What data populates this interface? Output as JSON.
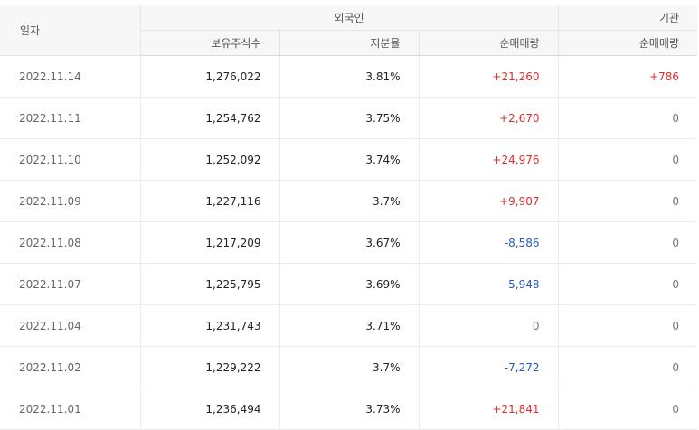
{
  "header": {
    "date_label": "일자",
    "foreign_label": "외국인",
    "institution_label": "기관",
    "columns": [
      "보유주식수",
      "지분율",
      "순매매량",
      "순매매량"
    ]
  },
  "colors": {
    "positive": "#e02c2c",
    "negative": "#2a57c6",
    "neutral": "#777777"
  },
  "rows": [
    {
      "date": "2022.11.14",
      "shares": "1,276,022",
      "ratio": "3.81%",
      "foreign_net": "+21,260",
      "inst_net": "+786"
    },
    {
      "date": "2022.11.11",
      "shares": "1,254,762",
      "ratio": "3.75%",
      "foreign_net": "+2,670",
      "inst_net": "0"
    },
    {
      "date": "2022.11.10",
      "shares": "1,252,092",
      "ratio": "3.74%",
      "foreign_net": "+24,976",
      "inst_net": "0"
    },
    {
      "date": "2022.11.09",
      "shares": "1,227,116",
      "ratio": "3.7%",
      "foreign_net": "+9,907",
      "inst_net": "0"
    },
    {
      "date": "2022.11.08",
      "shares": "1,217,209",
      "ratio": "3.67%",
      "foreign_net": "-8,586",
      "inst_net": "0"
    },
    {
      "date": "2022.11.07",
      "shares": "1,225,795",
      "ratio": "3.69%",
      "foreign_net": "-5,948",
      "inst_net": "0"
    },
    {
      "date": "2022.11.04",
      "shares": "1,231,743",
      "ratio": "3.71%",
      "foreign_net": "0",
      "inst_net": "0"
    },
    {
      "date": "2022.11.02",
      "shares": "1,229,222",
      "ratio": "3.7%",
      "foreign_net": "-7,272",
      "inst_net": "0"
    },
    {
      "date": "2022.11.01",
      "shares": "1,236,494",
      "ratio": "3.73%",
      "foreign_net": "+21,841",
      "inst_net": "0"
    }
  ]
}
